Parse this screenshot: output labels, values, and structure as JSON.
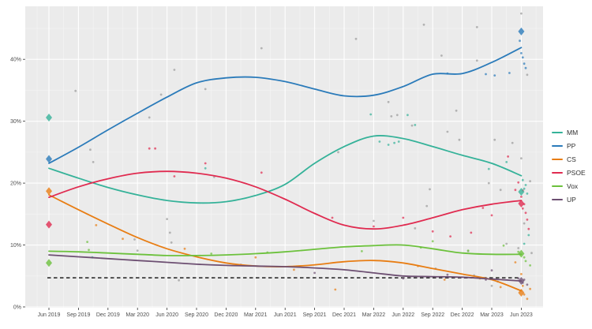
{
  "chart_data": {
    "type": "line",
    "title": "",
    "xlabel": "",
    "ylabel": "",
    "grid": true,
    "legend_position": "right",
    "panel_background": "#ebebeb",
    "x_tick_labels": [
      "Jun 2019",
      "Sep 2019",
      "Dec 2019",
      "Mar 2020",
      "Jun 2020",
      "Sep 2020",
      "Dec 2020",
      "Mar 2021",
      "Jun 2021",
      "Sep 2021",
      "Dec 2021",
      "Mar 2022",
      "Jun 2022",
      "Sep 2022",
      "Dec 2022",
      "Mar 2023",
      "Jun 2023"
    ],
    "y_tick_labels": [
      "0%",
      "10%",
      "20%",
      "30%",
      "40%"
    ],
    "y_tick_values": [
      0,
      10,
      20,
      30,
      40
    ],
    "ylim": [
      0,
      48.5
    ],
    "threshold_line": {
      "value_pct": 4.7,
      "style": "dashed",
      "color": "#3c3c3c"
    },
    "series": [
      {
        "name": "MM",
        "color": "#35b299",
        "values": [
          22.4,
          20.8,
          19.3,
          18.1,
          17.2,
          16.8,
          17.0,
          18.0,
          19.8,
          23.2,
          25.9,
          27.6,
          27.2,
          25.9,
          24.5,
          23.2,
          21.2
        ]
      },
      {
        "name": "PP",
        "color": "#2b7bba",
        "values": [
          23.2,
          25.8,
          28.6,
          31.3,
          33.9,
          36.2,
          37.0,
          37.1,
          36.4,
          35.2,
          34.1,
          34.2,
          35.6,
          37.6,
          37.7,
          39.5,
          41.9
        ]
      },
      {
        "name": "CS",
        "color": "#e87d13",
        "values": [
          18.1,
          15.7,
          13.4,
          11.2,
          9.4,
          8.1,
          7.1,
          6.6,
          6.5,
          6.8,
          7.3,
          7.5,
          7.1,
          6.2,
          5.3,
          4.4,
          2.6
        ]
      },
      {
        "name": "PSOE",
        "color": "#e02b50",
        "values": [
          17.7,
          19.4,
          20.7,
          21.6,
          21.9,
          21.6,
          20.8,
          19.4,
          17.4,
          15.1,
          13.2,
          12.6,
          13.2,
          14.4,
          15.7,
          16.6,
          17.2
        ]
      },
      {
        "name": "Vox",
        "color": "#6cc13c",
        "values": [
          9.0,
          8.9,
          8.7,
          8.5,
          8.3,
          8.3,
          8.4,
          8.6,
          8.9,
          9.3,
          9.7,
          9.9,
          10.0,
          9.4,
          8.7,
          8.5,
          8.5
        ]
      },
      {
        "name": "UP",
        "color": "#6d4f72",
        "values": [
          8.4,
          8.1,
          7.8,
          7.5,
          7.2,
          6.9,
          6.7,
          6.6,
          6.5,
          6.3,
          6.0,
          5.5,
          5.0,
          4.9,
          4.8,
          4.5,
          4.2
        ]
      }
    ],
    "election_markers": [
      {
        "date": "Jun 2019",
        "t": 0,
        "results": [
          {
            "party": "MM",
            "pct": 30.6
          },
          {
            "party": "PP",
            "pct": 23.9
          },
          {
            "party": "CS",
            "pct": 18.7
          },
          {
            "party": "PSOE",
            "pct": 13.3
          },
          {
            "party": "Vox",
            "pct": 7.1
          }
        ]
      },
      {
        "date": "Jun 2023",
        "t": 16,
        "results": [
          {
            "party": "PP",
            "pct": 44.5
          },
          {
            "party": "MM",
            "pct": 18.6
          },
          {
            "party": "PSOE",
            "pct": 16.7
          },
          {
            "party": "Vox",
            "pct": 8.6
          },
          {
            "party": "UP",
            "pct": 4.2
          },
          {
            "party": "CS",
            "pct": 2.3
          }
        ]
      }
    ],
    "poll_scatter": [
      {
        "party": "other",
        "color": "#9a9a9a",
        "points": [
          [
            0.9,
            34.9
          ],
          [
            1.4,
            25.4
          ],
          [
            1.5,
            23.4
          ],
          [
            2.9,
            10.9
          ],
          [
            3.0,
            9.1
          ],
          [
            3.4,
            30.6
          ],
          [
            3.8,
            34.3
          ],
          [
            4.0,
            14.2
          ],
          [
            4.1,
            12.0
          ],
          [
            4.15,
            10.4
          ],
          [
            4.25,
            38.3
          ],
          [
            4.4,
            4.3
          ],
          [
            5.3,
            35.2
          ],
          [
            5.6,
            21.0
          ],
          [
            7.2,
            41.8
          ],
          [
            9.8,
            25.0
          ],
          [
            10.4,
            43.3
          ],
          [
            11.0,
            13.9
          ],
          [
            11.5,
            33.1
          ],
          [
            11.6,
            30.8
          ],
          [
            11.8,
            31.0
          ],
          [
            12.3,
            29.3
          ],
          [
            12.4,
            12.7
          ],
          [
            12.7,
            45.6
          ],
          [
            12.8,
            16.3
          ],
          [
            12.9,
            19.0
          ],
          [
            13.1,
            6.2
          ],
          [
            13.3,
            40.6
          ],
          [
            13.5,
            28.3
          ],
          [
            13.8,
            31.7
          ],
          [
            13.9,
            27.0
          ],
          [
            14.2,
            9.0
          ],
          [
            14.4,
            5.1
          ],
          [
            14.5,
            45.2
          ],
          [
            14.5,
            39.8
          ],
          [
            14.9,
            20.0
          ],
          [
            15.0,
            3.4
          ],
          [
            15.1,
            27.0
          ],
          [
            15.2,
            4.1
          ],
          [
            15.3,
            18.9
          ],
          [
            15.5,
            10.2
          ],
          [
            15.7,
            26.5
          ],
          [
            15.9,
            9.5
          ],
          [
            16.0,
            47.4
          ],
          [
            16.0,
            24.0
          ],
          [
            16.1,
            13.5
          ],
          [
            16.2,
            37.5
          ],
          [
            16.3,
            20.3
          ],
          [
            16.35,
            8.7
          ]
        ]
      },
      {
        "party": "MM",
        "color": "#35b299",
        "points": [
          [
            1.47,
            8.0
          ],
          [
            5.3,
            22.4
          ],
          [
            10.9,
            31.1
          ],
          [
            11.2,
            26.7
          ],
          [
            11.5,
            26.2
          ],
          [
            11.7,
            26.5
          ],
          [
            11.85,
            26.7
          ],
          [
            12.15,
            31.0
          ],
          [
            12.4,
            29.4
          ],
          [
            14.9,
            22.3
          ],
          [
            15.5,
            23.4
          ],
          [
            16.05,
            20.5
          ],
          [
            16.1,
            19.1
          ],
          [
            16.1,
            10.2
          ],
          [
            16.15,
            19.7
          ],
          [
            16.2,
            18.3
          ],
          [
            16.25,
            11.6
          ]
        ]
      },
      {
        "party": "PP",
        "color": "#2b7bba",
        "points": [
          [
            13.5,
            37.7
          ],
          [
            14.8,
            37.6
          ],
          [
            15.1,
            37.4
          ],
          [
            15.6,
            37.8
          ],
          [
            15.95,
            43.0
          ],
          [
            16.0,
            41.0
          ],
          [
            16.05,
            40.3
          ],
          [
            16.1,
            39.3
          ],
          [
            16.15,
            38.6
          ]
        ]
      },
      {
        "party": "CS",
        "color": "#e87d13",
        "points": [
          [
            1.6,
            13.2
          ],
          [
            2.5,
            11.0
          ],
          [
            4.6,
            9.4
          ],
          [
            7.0,
            8.0
          ],
          [
            8.3,
            6.0
          ],
          [
            9.7,
            2.8
          ],
          [
            12.5,
            6.6
          ],
          [
            13.4,
            4.4
          ],
          [
            14.6,
            4.6
          ],
          [
            15.3,
            3.2
          ],
          [
            15.8,
            7.2
          ],
          [
            16.0,
            5.3
          ],
          [
            16.05,
            3.4
          ],
          [
            16.1,
            2.0
          ],
          [
            16.2,
            1.3
          ],
          [
            16.3,
            2.9
          ]
        ]
      },
      {
        "party": "PSOE",
        "color": "#e02b50",
        "points": [
          [
            3.4,
            25.6
          ],
          [
            3.6,
            25.6
          ],
          [
            4.25,
            21.1
          ],
          [
            5.3,
            23.2
          ],
          [
            7.2,
            21.7
          ],
          [
            9.6,
            14.4
          ],
          [
            11.0,
            13.0
          ],
          [
            12.0,
            14.4
          ],
          [
            13.0,
            12.2
          ],
          [
            13.6,
            11.4
          ],
          [
            14.3,
            12.0
          ],
          [
            14.7,
            16.0
          ],
          [
            15.0,
            14.8
          ],
          [
            15.55,
            24.3
          ],
          [
            15.8,
            18.9
          ],
          [
            15.9,
            20.1
          ],
          [
            16.0,
            17.8
          ],
          [
            16.05,
            15.9
          ],
          [
            16.05,
            18.8
          ],
          [
            16.1,
            16.6
          ],
          [
            16.15,
            15.2
          ],
          [
            16.2,
            14.1
          ],
          [
            16.25,
            12.6
          ]
        ]
      },
      {
        "party": "Vox",
        "color": "#6cc13c",
        "points": [
          [
            1.3,
            10.5
          ],
          [
            1.35,
            9.2
          ],
          [
            5.5,
            8.6
          ],
          [
            7.4,
            8.8
          ],
          [
            10.6,
            9.0
          ],
          [
            12.6,
            9.6
          ],
          [
            13.0,
            10.6
          ],
          [
            14.2,
            9.1
          ],
          [
            15.4,
            9.9
          ],
          [
            15.9,
            8.9
          ],
          [
            16.1,
            8.0
          ],
          [
            16.15,
            7.4
          ],
          [
            16.3,
            6.7
          ]
        ]
      },
      {
        "party": "UP",
        "color": "#6d4f72",
        "points": [
          [
            6.5,
            6.8
          ],
          [
            9.0,
            5.5
          ],
          [
            12.0,
            4.6
          ],
          [
            13.5,
            5.2
          ],
          [
            14.8,
            4.4
          ],
          [
            15.0,
            5.9
          ],
          [
            15.9,
            4.6
          ],
          [
            16.05,
            3.9
          ],
          [
            16.1,
            4.4
          ],
          [
            16.2,
            3.6
          ]
        ]
      }
    ]
  },
  "legend": {
    "items": [
      {
        "label": "MM"
      },
      {
        "label": "PP"
      },
      {
        "label": "CS"
      },
      {
        "label": "PSOE"
      },
      {
        "label": "Vox"
      },
      {
        "label": "UP"
      }
    ]
  }
}
